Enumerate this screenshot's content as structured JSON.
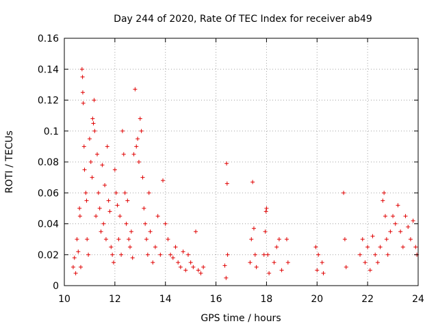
{
  "chart_data": {
    "type": "scatter",
    "title": "Day 244 of 2020, Rate Of TEC Index for receiver ab49",
    "xlabel": "GPS time / hours",
    "ylabel": "ROTI / TECUs",
    "xlim": [
      10,
      24
    ],
    "ylim": [
      0,
      0.16
    ],
    "x_ticks": [
      "10",
      "12",
      "14",
      "16",
      "18",
      "20",
      "22",
      "24"
    ],
    "y_ticks": [
      "0",
      "0.02",
      "0.04",
      "0.06",
      "0.08",
      "0.1",
      "0.12",
      "0.14",
      "0.16"
    ],
    "grid": true,
    "legend": "none",
    "marker": "plus",
    "color": "#e00000",
    "series": [
      {
        "points": [
          [
            10.35,
            0.012
          ],
          [
            10.4,
            0.018
          ],
          [
            10.45,
            0.008
          ],
          [
            10.5,
            0.03
          ],
          [
            10.55,
            0.022
          ],
          [
            10.6,
            0.05
          ],
          [
            10.62,
            0.045
          ],
          [
            10.65,
            0.012
          ],
          [
            10.7,
            0.14
          ],
          [
            10.72,
            0.135
          ],
          [
            10.73,
            0.125
          ],
          [
            10.75,
            0.118
          ],
          [
            10.78,
            0.09
          ],
          [
            10.8,
            0.075
          ],
          [
            10.85,
            0.06
          ],
          [
            10.88,
            0.055
          ],
          [
            10.9,
            0.03
          ],
          [
            10.95,
            0.02
          ],
          [
            11.0,
            0.095
          ],
          [
            11.05,
            0.08
          ],
          [
            11.1,
            0.07
          ],
          [
            11.12,
            0.108
          ],
          [
            11.15,
            0.105
          ],
          [
            11.18,
            0.12
          ],
          [
            11.2,
            0.1
          ],
          [
            11.25,
            0.045
          ],
          [
            11.3,
            0.085
          ],
          [
            11.35,
            0.06
          ],
          [
            11.4,
            0.05
          ],
          [
            11.45,
            0.035
          ],
          [
            11.5,
            0.078
          ],
          [
            11.55,
            0.04
          ],
          [
            11.6,
            0.065
          ],
          [
            11.65,
            0.03
          ],
          [
            11.7,
            0.09
          ],
          [
            11.75,
            0.055
          ],
          [
            11.8,
            0.048
          ],
          [
            11.85,
            0.025
          ],
          [
            11.9,
            0.02
          ],
          [
            11.95,
            0.015
          ],
          [
            12.0,
            0.075
          ],
          [
            12.05,
            0.06
          ],
          [
            12.1,
            0.052
          ],
          [
            12.15,
            0.03
          ],
          [
            12.2,
            0.045
          ],
          [
            12.25,
            0.02
          ],
          [
            12.3,
            0.1
          ],
          [
            12.35,
            0.085
          ],
          [
            12.4,
            0.06
          ],
          [
            12.45,
            0.04
          ],
          [
            12.5,
            0.055
          ],
          [
            12.55,
            0.03
          ],
          [
            12.6,
            0.025
          ],
          [
            12.65,
            0.035
          ],
          [
            12.7,
            0.018
          ],
          [
            12.75,
            0.085
          ],
          [
            12.8,
            0.127
          ],
          [
            12.85,
            0.09
          ],
          [
            12.9,
            0.095
          ],
          [
            12.95,
            0.08
          ],
          [
            13.0,
            0.108
          ],
          [
            13.05,
            0.1
          ],
          [
            13.1,
            0.07
          ],
          [
            13.15,
            0.05
          ],
          [
            13.2,
            0.04
          ],
          [
            13.25,
            0.03
          ],
          [
            13.3,
            0.02
          ],
          [
            13.35,
            0.06
          ],
          [
            13.4,
            0.035
          ],
          [
            13.5,
            0.015
          ],
          [
            13.6,
            0.025
          ],
          [
            13.7,
            0.045
          ],
          [
            13.8,
            0.02
          ],
          [
            13.9,
            0.068
          ],
          [
            14.0,
            0.04
          ],
          [
            14.1,
            0.03
          ],
          [
            14.2,
            0.02
          ],
          [
            14.3,
            0.018
          ],
          [
            14.4,
            0.025
          ],
          [
            14.5,
            0.015
          ],
          [
            14.6,
            0.012
          ],
          [
            14.7,
            0.022
          ],
          [
            14.8,
            0.01
          ],
          [
            14.9,
            0.02
          ],
          [
            15.0,
            0.015
          ],
          [
            15.1,
            0.012
          ],
          [
            15.2,
            0.035
          ],
          [
            15.3,
            0.01
          ],
          [
            15.4,
            0.008
          ],
          [
            15.5,
            0.012
          ],
          [
            16.35,
            0.013
          ],
          [
            16.4,
            0.005
          ],
          [
            16.42,
            0.079
          ],
          [
            16.44,
            0.066
          ],
          [
            16.46,
            0.02
          ],
          [
            17.35,
            0.015
          ],
          [
            17.4,
            0.03
          ],
          [
            17.45,
            0.067
          ],
          [
            17.5,
            0.037
          ],
          [
            17.55,
            0.02
          ],
          [
            17.6,
            0.012
          ],
          [
            17.9,
            0.02
          ],
          [
            17.95,
            0.035
          ],
          [
            17.98,
            0.048
          ],
          [
            18.0,
            0.05
          ],
          [
            18.05,
            0.02
          ],
          [
            18.1,
            0.008
          ],
          [
            18.3,
            0.015
          ],
          [
            18.4,
            0.025
          ],
          [
            18.5,
            0.03
          ],
          [
            18.6,
            0.01
          ],
          [
            18.8,
            0.03
          ],
          [
            18.85,
            0.015
          ],
          [
            19.95,
            0.025
          ],
          [
            20.0,
            0.01
          ],
          [
            20.05,
            0.02
          ],
          [
            20.2,
            0.015
          ],
          [
            20.25,
            0.008
          ],
          [
            21.05,
            0.06
          ],
          [
            21.1,
            0.03
          ],
          [
            21.15,
            0.012
          ],
          [
            21.7,
            0.02
          ],
          [
            21.8,
            0.03
          ],
          [
            21.9,
            0.015
          ],
          [
            22.0,
            0.025
          ],
          [
            22.1,
            0.01
          ],
          [
            22.2,
            0.032
          ],
          [
            22.3,
            0.02
          ],
          [
            22.4,
            0.015
          ],
          [
            22.5,
            0.025
          ],
          [
            22.6,
            0.055
          ],
          [
            22.65,
            0.06
          ],
          [
            22.7,
            0.045
          ],
          [
            22.75,
            0.03
          ],
          [
            22.8,
            0.02
          ],
          [
            22.9,
            0.035
          ],
          [
            23.0,
            0.045
          ],
          [
            23.1,
            0.04
          ],
          [
            23.2,
            0.052
          ],
          [
            23.3,
            0.035
          ],
          [
            23.4,
            0.025
          ],
          [
            23.5,
            0.045
          ],
          [
            23.6,
            0.038
          ],
          [
            23.7,
            0.03
          ],
          [
            23.8,
            0.042
          ],
          [
            23.9,
            0.025
          ],
          [
            23.95,
            0.02
          ]
        ]
      }
    ]
  }
}
